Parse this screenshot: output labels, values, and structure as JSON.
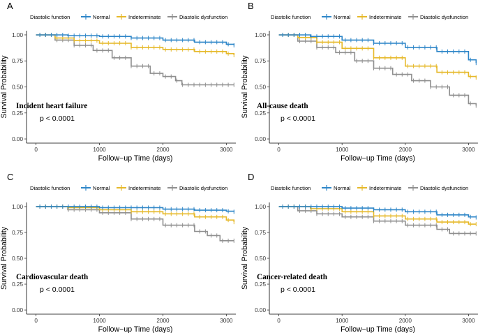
{
  "chart_data": [
    {
      "type": "line",
      "panel": "A",
      "title": "Incident heart failure",
      "pvalue": "p < 0.0001",
      "xlabel": "Follow−up Time (days)",
      "ylabel": "Survival Probability",
      "xlim": [
        -150,
        3150
      ],
      "ylim": [
        -0.04,
        1.04
      ],
      "xticks": [
        0,
        1000,
        2000,
        3000
      ],
      "yticks": [
        0.0,
        0.25,
        0.5,
        0.75,
        1.0
      ],
      "ytick_labels": [
        "0.00",
        "0.25",
        "0.50",
        "0.75",
        "1.00"
      ],
      "legend": {
        "title": "Diastolic function",
        "position": "top"
      },
      "series": [
        {
          "name": "Normal",
          "color": "#2E86C8",
          "x": [
            0,
            500,
            1000,
            1500,
            2000,
            2500,
            3000,
            3120
          ],
          "y": [
            1.0,
            0.993,
            0.985,
            0.97,
            0.95,
            0.93,
            0.91,
            0.9
          ]
        },
        {
          "name": "Indeterminate",
          "color": "#E6B92A",
          "x": [
            0,
            300,
            600,
            1000,
            1500,
            2000,
            2500,
            3000,
            3120
          ],
          "y": [
            1.0,
            0.97,
            0.945,
            0.92,
            0.88,
            0.86,
            0.84,
            0.82,
            0.805
          ]
        },
        {
          "name": "Diastolic dysfunction",
          "color": "#8F8F8F",
          "x": [
            0,
            300,
            600,
            900,
            1200,
            1500,
            1800,
            2000,
            2200,
            2300,
            3120
          ],
          "y": [
            1.0,
            0.95,
            0.9,
            0.85,
            0.78,
            0.7,
            0.63,
            0.6,
            0.56,
            0.52,
            0.52
          ]
        }
      ]
    },
    {
      "type": "line",
      "panel": "B",
      "title": "All-cause death",
      "pvalue": "p < 0.0001",
      "xlabel": "Follow−up Time (days)",
      "ylabel": "Survival Probability",
      "xlim": [
        -150,
        3150
      ],
      "ylim": [
        -0.04,
        1.04
      ],
      "xticks": [
        0,
        1000,
        2000,
        3000
      ],
      "yticks": [
        0.0,
        0.25,
        0.5,
        0.75,
        1.0
      ],
      "ytick_labels": [
        "0.00",
        "0.25",
        "0.50",
        "0.75",
        "1.00"
      ],
      "legend": {
        "title": "Diastolic function",
        "position": "top"
      },
      "series": [
        {
          "name": "Normal",
          "color": "#2E86C8",
          "x": [
            0,
            500,
            1000,
            1500,
            2000,
            2500,
            3000,
            3120
          ],
          "y": [
            1.0,
            0.985,
            0.95,
            0.92,
            0.88,
            0.84,
            0.76,
            0.73
          ]
        },
        {
          "name": "Indeterminate",
          "color": "#E6B92A",
          "x": [
            0,
            300,
            600,
            1000,
            1500,
            2000,
            2500,
            3000,
            3120
          ],
          "y": [
            1.0,
            0.975,
            0.93,
            0.87,
            0.78,
            0.7,
            0.64,
            0.6,
            0.59
          ]
        },
        {
          "name": "Diastolic dysfunction",
          "color": "#8F8F8F",
          "x": [
            0,
            300,
            600,
            900,
            1200,
            1500,
            1800,
            2100,
            2400,
            2700,
            3000,
            3120
          ],
          "y": [
            1.0,
            0.94,
            0.88,
            0.83,
            0.75,
            0.68,
            0.62,
            0.56,
            0.5,
            0.42,
            0.34,
            0.32
          ]
        }
      ]
    },
    {
      "type": "line",
      "panel": "C",
      "title": "Cardiovascular death",
      "pvalue": "p < 0.0001",
      "xlabel": "Follow−up Time (days)",
      "ylabel": "Survival Probability",
      "xlim": [
        -150,
        3150
      ],
      "ylim": [
        -0.04,
        1.04
      ],
      "xticks": [
        0,
        1000,
        2000,
        3000
      ],
      "yticks": [
        0.0,
        0.25,
        0.5,
        0.75,
        1.0
      ],
      "ytick_labels": [
        "0.00",
        "0.25",
        "0.50",
        "0.75",
        "1.00"
      ],
      "legend": {
        "title": "Diastolic function",
        "position": "top"
      },
      "series": [
        {
          "name": "Normal",
          "color": "#2E86C8",
          "x": [
            0,
            1000,
            2000,
            2500,
            3000,
            3120
          ],
          "y": [
            1.0,
            0.99,
            0.975,
            0.965,
            0.955,
            0.95
          ]
        },
        {
          "name": "Indeterminate",
          "color": "#E6B92A",
          "x": [
            0,
            500,
            1000,
            1500,
            2000,
            2500,
            3000,
            3120
          ],
          "y": [
            1.0,
            0.99,
            0.97,
            0.95,
            0.93,
            0.9,
            0.87,
            0.85
          ]
        },
        {
          "name": "Diastolic dysfunction",
          "color": "#8F8F8F",
          "x": [
            0,
            500,
            1000,
            1500,
            2000,
            2500,
            2700,
            2900,
            3120
          ],
          "y": [
            1.0,
            0.97,
            0.94,
            0.88,
            0.82,
            0.76,
            0.72,
            0.67,
            0.67
          ]
        }
      ]
    },
    {
      "type": "line",
      "panel": "D",
      "title": "Cancer-related death",
      "pvalue": "p < 0.0001",
      "xlabel": "Follow−up Time (days)",
      "ylabel": "Survival Probability",
      "xlim": [
        -150,
        3150
      ],
      "ylim": [
        -0.04,
        1.04
      ],
      "xticks": [
        0,
        1000,
        2000,
        3000
      ],
      "yticks": [
        0.0,
        0.25,
        0.5,
        0.75,
        1.0
      ],
      "ytick_labels": [
        "0.00",
        "0.25",
        "0.50",
        "0.75",
        "1.00"
      ],
      "legend": {
        "title": "Diastolic function",
        "position": "top"
      },
      "series": [
        {
          "name": "Normal",
          "color": "#2E86C8",
          "x": [
            0,
            1000,
            1500,
            2000,
            2500,
            3000,
            3120
          ],
          "y": [
            1.0,
            0.985,
            0.97,
            0.95,
            0.92,
            0.9,
            0.895
          ]
        },
        {
          "name": "Indeterminate",
          "color": "#E6B92A",
          "x": [
            0,
            500,
            1000,
            1500,
            2000,
            2500,
            3000,
            3120
          ],
          "y": [
            1.0,
            0.98,
            0.95,
            0.91,
            0.88,
            0.85,
            0.83,
            0.83
          ]
        },
        {
          "name": "Diastolic dysfunction",
          "color": "#8F8F8F",
          "x": [
            0,
            300,
            600,
            1000,
            1500,
            2000,
            2500,
            2700,
            3120
          ],
          "y": [
            1.0,
            0.96,
            0.93,
            0.9,
            0.86,
            0.82,
            0.78,
            0.74,
            0.74
          ]
        }
      ]
    }
  ]
}
